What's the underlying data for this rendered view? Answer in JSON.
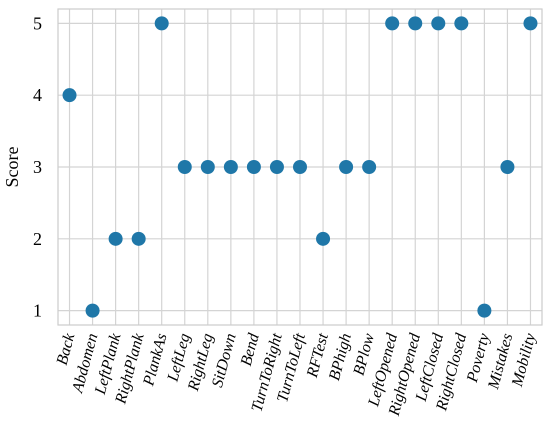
{
  "chart_data": {
    "type": "scatter",
    "title": "",
    "xlabel": "",
    "ylabel": "Score",
    "ylim": [
      0.8,
      5.2
    ],
    "yticks": [
      1,
      2,
      3,
      4,
      5
    ],
    "grid": true,
    "marker_color": "#1f77a8",
    "categories": [
      "Back",
      "Abdomen",
      "LeftPlank",
      "RightPlank",
      "PlankAs",
      "LeftLeg",
      "RightLeg",
      "SitDown",
      "Bend",
      "TurnToRight",
      "TurnToLeft",
      "RFTest",
      "BPhigh",
      "BPlow",
      "LeftOpened",
      "RightOpened",
      "LeftClosed",
      "RightClosed",
      "Poverty",
      "Mistakes",
      "Mobility"
    ],
    "values": [
      4,
      1,
      2,
      2,
      5,
      3,
      3,
      3,
      3,
      3,
      3,
      2,
      3,
      3,
      5,
      5,
      5,
      5,
      1,
      3,
      5
    ]
  }
}
